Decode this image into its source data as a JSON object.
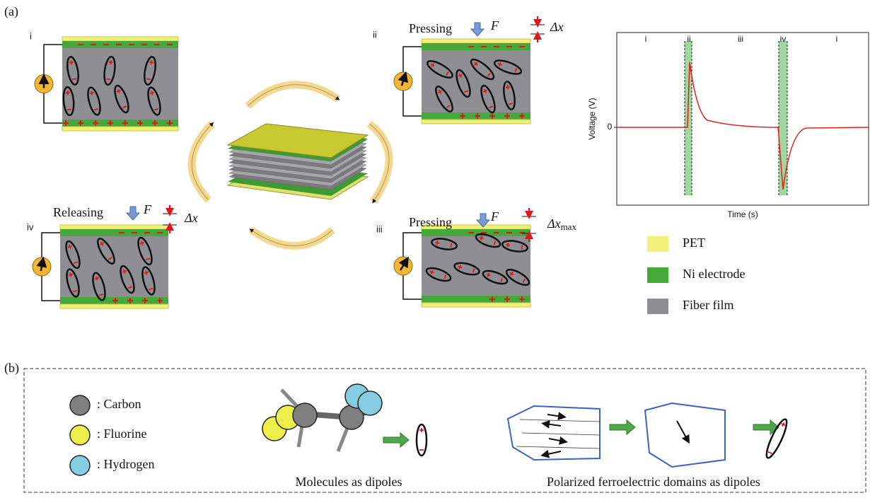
{
  "panel_a": {
    "label": "(a)",
    "states": [
      {
        "id": "i"
      },
      {
        "id": "ii",
        "action": "Pressing",
        "force": "F",
        "displacement": "Δx"
      },
      {
        "id": "iii",
        "action": "Pressing",
        "force": "F",
        "displacement": "Δx",
        "subscript": "max"
      },
      {
        "id": "iv",
        "action": "Releasing",
        "force": "F",
        "displacement": "Δx"
      }
    ],
    "plot": {
      "y_label": "Voltage (V)",
      "x_label": "Time (s)",
      "zero_label": "0",
      "phases": [
        "i",
        "ii",
        "iii",
        "iv",
        "i"
      ]
    },
    "legend": [
      "PET",
      "Ni electrode",
      "Fiber film"
    ]
  },
  "panel_b": {
    "label": "(b)",
    "atoms": [
      ": Carbon",
      ": Fluorine",
      ": Hydrogen"
    ],
    "captions": [
      "Molecules as dipoles",
      "Polarized ferroelectric domains as dipoles"
    ]
  }
}
